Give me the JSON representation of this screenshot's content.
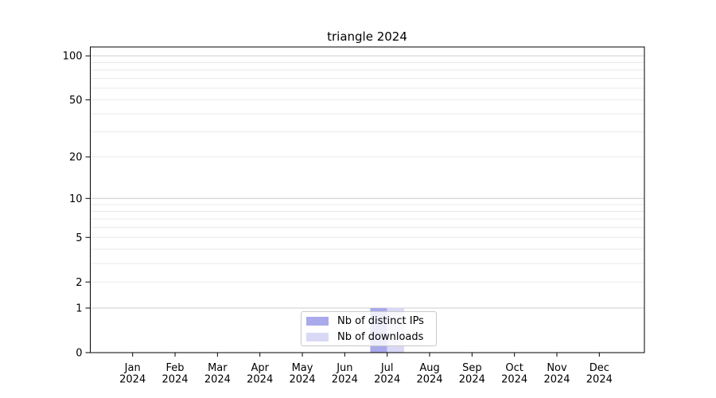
{
  "chart_data": {
    "type": "bar",
    "title": "triangle 2024",
    "categories": [
      "Jan 2024",
      "Feb 2024",
      "Mar 2024",
      "Apr 2024",
      "May 2024",
      "Jun 2024",
      "Jul 2024",
      "Aug 2024",
      "Sep 2024",
      "Oct 2024",
      "Nov 2024",
      "Dec 2024"
    ],
    "series": [
      {
        "id": "distinct-ips",
        "name": "Nb of distinct IPs",
        "color": "#a9a9ec",
        "values": [
          0,
          0,
          0,
          0,
          0,
          0,
          1,
          0,
          0,
          0,
          0,
          0
        ]
      },
      {
        "id": "downloads",
        "name": "Nb of downloads",
        "color": "#d9d9f6",
        "values": [
          0,
          0,
          0,
          0,
          0,
          0,
          1,
          0,
          0,
          0,
          0,
          0
        ]
      }
    ],
    "xlabel": "",
    "ylabel": "",
    "yscale": "log1p",
    "ylim": [
      0,
      115
    ],
    "yticks_labeled": [
      0,
      1,
      2,
      5,
      10,
      20,
      50,
      100
    ],
    "ygrid_major": [
      1,
      10,
      100
    ],
    "ygrid_minor": [
      2,
      3,
      4,
      5,
      6,
      7,
      8,
      9,
      20,
      30,
      40,
      50,
      60,
      70,
      80,
      90
    ],
    "grid": "on",
    "legend": {
      "position": "lower center",
      "entries": [
        "Nb of distinct IPs",
        "Nb of downloads"
      ]
    },
    "colors": {
      "major_grid": "#cccccc",
      "minor_grid": "#e9e9e9",
      "axis": "#000000",
      "background": "#ffffff"
    }
  }
}
